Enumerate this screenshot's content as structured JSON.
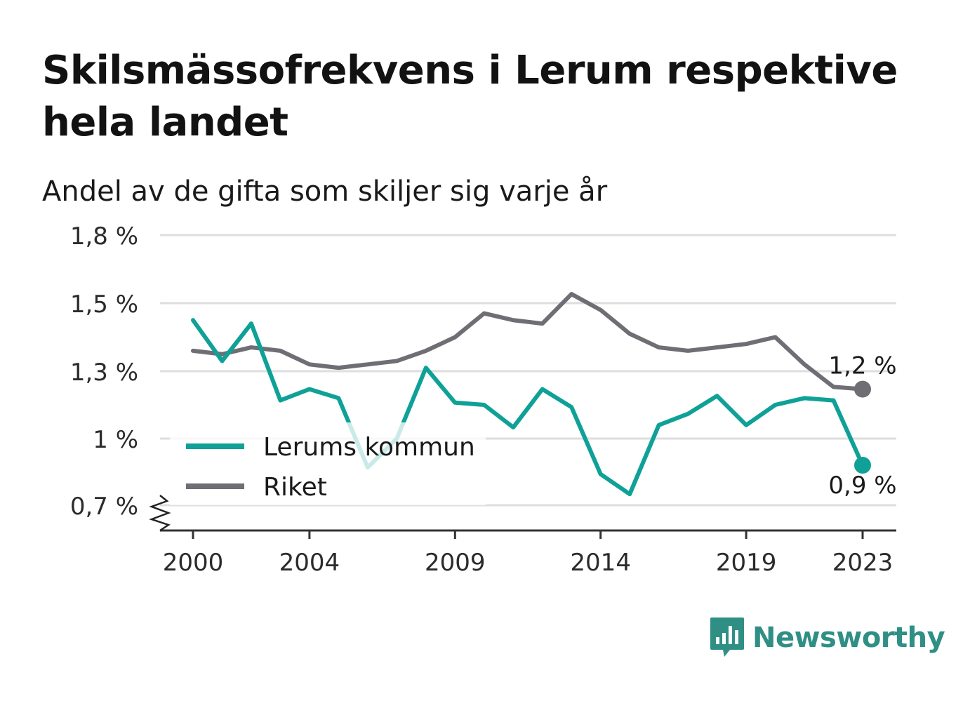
{
  "title": "Skilsmässofrekvens i Lerum respektive hela landet",
  "subtitle": "Andel av de gifta som skiljer sig varje år",
  "brand": {
    "name": "Newsworthy",
    "icon": "bar-chart-logo-icon"
  },
  "colors": {
    "lerum": "#0fa197",
    "riket": "#6e6e74",
    "grid": "#dedede",
    "axis": "#333333",
    "brand": "#2f8f85"
  },
  "chart_data": {
    "type": "line",
    "x": [
      2000,
      2001,
      2002,
      2003,
      2004,
      2005,
      2006,
      2007,
      2008,
      2009,
      2010,
      2011,
      2012,
      2013,
      2014,
      2015,
      2016,
      2017,
      2018,
      2019,
      2020,
      2021,
      2022,
      2023
    ],
    "x_ticks": [
      "2000",
      "2004",
      "2009",
      "2014",
      "2019",
      "2023"
    ],
    "y_ticks": [
      "0,7 %",
      "1 %",
      "1,3 %",
      "1,5 %",
      "1,8 %"
    ],
    "ylim": [
      0.7,
      1.8
    ],
    "axis_break": true,
    "grid": true,
    "legend_position": "bottom-left",
    "series": [
      {
        "key": "lerum",
        "name": "Lerums kommun",
        "values": [
          1.45,
          1.33,
          1.44,
          1.17,
          1.22,
          1.18,
          0.87,
          1.0,
          1.31,
          1.16,
          1.15,
          1.05,
          1.22,
          1.14,
          0.84,
          0.75,
          1.06,
          1.11,
          1.19,
          1.06,
          1.15,
          1.18,
          1.17,
          0.88
        ],
        "end_label": "0,9 %"
      },
      {
        "key": "riket",
        "name": "Riket",
        "values": [
          1.36,
          1.35,
          1.37,
          1.36,
          1.32,
          1.31,
          1.32,
          1.33,
          1.36,
          1.4,
          1.47,
          1.45,
          1.44,
          1.54,
          1.48,
          1.41,
          1.37,
          1.36,
          1.37,
          1.38,
          1.4,
          1.32,
          1.23,
          1.22
        ],
        "end_label": "1,2 %"
      }
    ]
  }
}
